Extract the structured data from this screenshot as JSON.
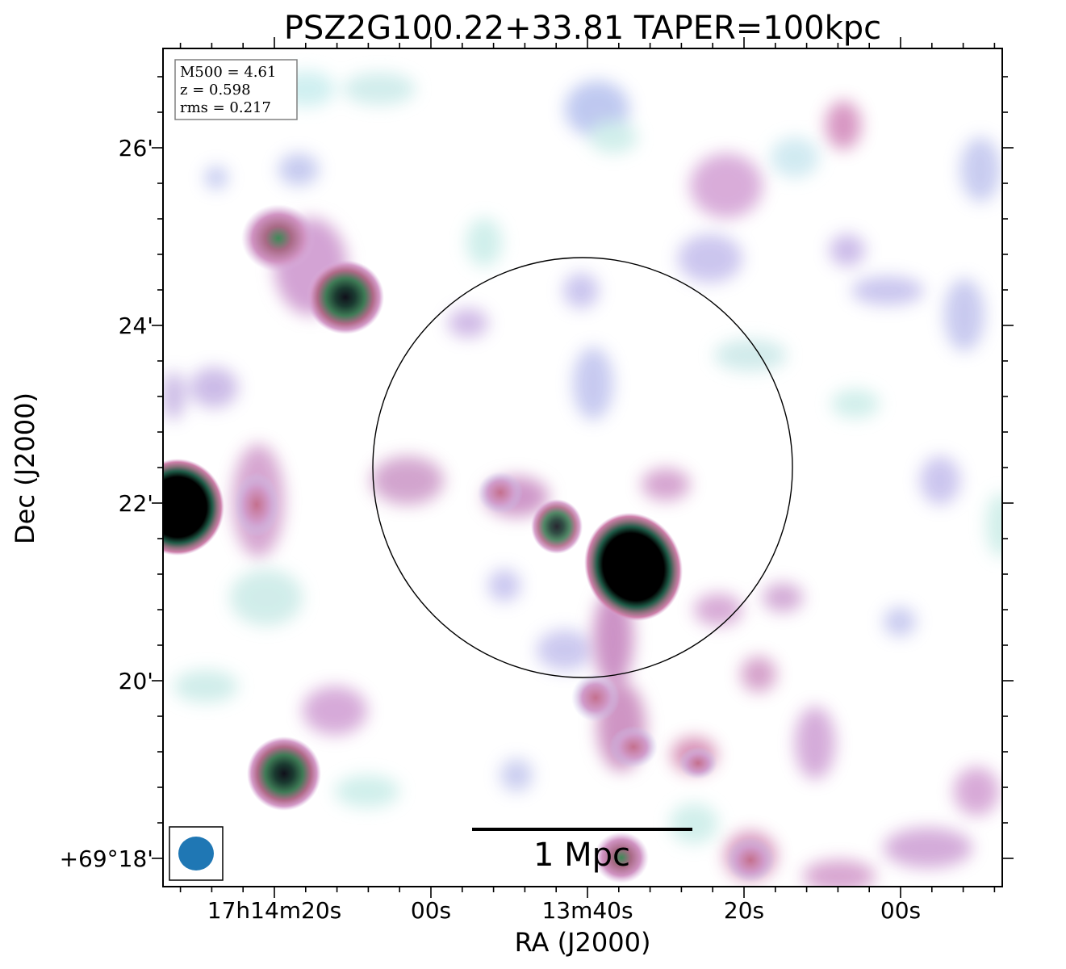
{
  "title": "PSZ2G100.22+33.81 TAPER=100kpc",
  "info_box": {
    "line1": "M500 = 4.61",
    "line2": "z = 0.598",
    "line3": "rms = 0.217"
  },
  "axes": {
    "xlabel": "RA (J2000)",
    "ylabel": "Dec (J2000)",
    "x_ticks": [
      "17h14m20s",
      "00s",
      "13m40s",
      "20s",
      "00s"
    ],
    "y_ticks": [
      "26'",
      "24'",
      "22'",
      "20'",
      "+69°18'"
    ]
  },
  "scale_bar": {
    "label": "1 Mpc"
  },
  "colors": {
    "low": "#cfeee9",
    "faint": "#b7c8ee",
    "mid": "#cf8fc0",
    "high": "#c65a86",
    "core": "#2a6a4a",
    "peak": "#000000",
    "beam": "#1f77b4"
  }
}
